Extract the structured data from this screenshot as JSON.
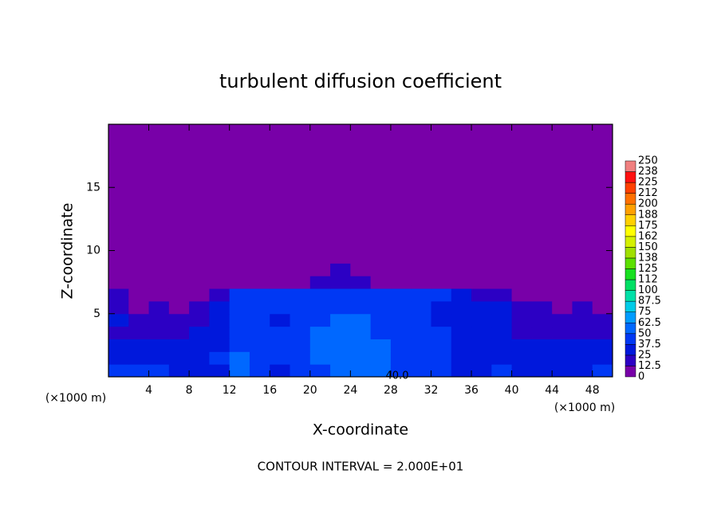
{
  "chart_data": {
    "type": "contour",
    "title": "turbulent diffusion coefficient",
    "xlabel": "X-coordinate",
    "ylabel": "Z-coordinate",
    "x_unit": "(×1000 m)",
    "y_unit": "(×1000 m)",
    "footer": "CONTOUR INTERVAL = 2.000E+01",
    "xlim": [
      0,
      50
    ],
    "ylim": [
      0,
      20
    ],
    "xticks": [
      4,
      8,
      12,
      16,
      20,
      24,
      28,
      32,
      36,
      40,
      44,
      48
    ],
    "yticks": [
      5,
      10,
      15
    ],
    "levels": [
      0,
      12.5,
      25,
      37.5,
      50,
      62.5,
      75,
      87.5,
      100,
      112,
      125,
      138,
      150,
      162,
      175,
      188,
      200,
      212,
      225,
      238,
      250
    ],
    "colors": [
      "#7800a8",
      "#2c00c4",
      "#0018dc",
      "#0038f4",
      "#0068ff",
      "#009cff",
      "#00cce8",
      "#00e0a8",
      "#00e064",
      "#18e020",
      "#5ce000",
      "#a0e000",
      "#d4f000",
      "#ffff00",
      "#ffd000",
      "#ffa000",
      "#ff7000",
      "#ff4000",
      "#ff1010",
      "#f08080"
    ],
    "contour_labels": [
      {
        "value": 40,
        "label": "40.0"
      }
    ],
    "x": [
      1,
      3,
      5,
      7,
      9,
      11,
      13,
      15,
      17,
      19,
      21,
      23,
      25,
      27,
      29,
      31,
      33,
      35,
      37,
      39,
      41,
      43,
      45,
      47,
      49
    ],
    "y": [
      0.5,
      1.5,
      2.5,
      3.5,
      4.5,
      5.5,
      6.5,
      7.5,
      8.5,
      9.5,
      10.5,
      11.5,
      12.5,
      13.5,
      14.5,
      15.5,
      16.5,
      17.5,
      18.5,
      19.5
    ],
    "z": [
      [
        40,
        45,
        40,
        35,
        30,
        35,
        55,
        40,
        35,
        40,
        45,
        50,
        55,
        50,
        45,
        40,
        40,
        35,
        35,
        40,
        35,
        30,
        30,
        35,
        40
      ],
      [
        35,
        30,
        30,
        30,
        35,
        45,
        60,
        45,
        40,
        45,
        50,
        55,
        60,
        55,
        45,
        40,
        40,
        35,
        35,
        35,
        30,
        30,
        30,
        30,
        30
      ],
      [
        30,
        25,
        25,
        25,
        30,
        35,
        45,
        40,
        40,
        45,
        50,
        60,
        60,
        50,
        40,
        40,
        40,
        35,
        30,
        30,
        25,
        25,
        25,
        25,
        25
      ],
      [
        20,
        20,
        15,
        15,
        30,
        35,
        40,
        40,
        40,
        45,
        50,
        60,
        55,
        45,
        40,
        40,
        40,
        35,
        30,
        25,
        20,
        20,
        20,
        15,
        20
      ],
      [
        25,
        15,
        20,
        15,
        20,
        35,
        40,
        40,
        35,
        40,
        45,
        55,
        50,
        45,
        40,
        40,
        35,
        35,
        35,
        25,
        15,
        20,
        15,
        20,
        15
      ],
      [
        20,
        10,
        15,
        10,
        15,
        35,
        40,
        40,
        40,
        40,
        40,
        45,
        45,
        40,
        40,
        40,
        35,
        35,
        30,
        25,
        20,
        15,
        10,
        15,
        10
      ],
      [
        15,
        8,
        8,
        8,
        8,
        20,
        40,
        40,
        40,
        40,
        40,
        40,
        40,
        40,
        40,
        40,
        40,
        30,
        20,
        15,
        10,
        8,
        8,
        8,
        8
      ],
      [
        5,
        5,
        5,
        5,
        5,
        5,
        8,
        10,
        10,
        10,
        15,
        20,
        15,
        10,
        8,
        5,
        5,
        5,
        5,
        5,
        5,
        5,
        5,
        5,
        5
      ],
      [
        5,
        5,
        5,
        5,
        5,
        5,
        5,
        5,
        5,
        5,
        10,
        15,
        10,
        5,
        5,
        5,
        5,
        5,
        5,
        5,
        5,
        5,
        5,
        5,
        5
      ],
      [
        5,
        5,
        5,
        5,
        5,
        5,
        5,
        5,
        5,
        5,
        5,
        5,
        5,
        5,
        5,
        5,
        5,
        5,
        5,
        5,
        5,
        5,
        5,
        5,
        5
      ],
      [
        5,
        5,
        5,
        5,
        5,
        5,
        5,
        5,
        5,
        5,
        5,
        5,
        5,
        5,
        5,
        5,
        5,
        5,
        5,
        5,
        5,
        5,
        5,
        5,
        5
      ],
      [
        5,
        5,
        5,
        5,
        5,
        5,
        5,
        5,
        5,
        5,
        5,
        5,
        5,
        5,
        5,
        5,
        5,
        5,
        5,
        5,
        5,
        5,
        5,
        5,
        5
      ],
      [
        5,
        5,
        5,
        5,
        5,
        5,
        5,
        5,
        5,
        5,
        5,
        5,
        5,
        5,
        5,
        5,
        5,
        5,
        5,
        5,
        5,
        5,
        5,
        5,
        5
      ],
      [
        5,
        5,
        5,
        5,
        5,
        5,
        5,
        5,
        5,
        5,
        5,
        5,
        5,
        5,
        5,
        5,
        5,
        5,
        5,
        5,
        5,
        5,
        5,
        5,
        5
      ],
      [
        5,
        5,
        5,
        5,
        5,
        5,
        5,
        5,
        5,
        5,
        5,
        5,
        5,
        5,
        5,
        5,
        5,
        5,
        5,
        5,
        5,
        5,
        5,
        5,
        5
      ],
      [
        5,
        5,
        5,
        5,
        5,
        5,
        5,
        5,
        5,
        5,
        5,
        5,
        5,
        5,
        5,
        5,
        5,
        5,
        5,
        5,
        5,
        5,
        5,
        5,
        5
      ],
      [
        5,
        5,
        5,
        5,
        5,
        5,
        5,
        5,
        5,
        5,
        5,
        5,
        5,
        5,
        5,
        5,
        5,
        5,
        5,
        5,
        5,
        5,
        5,
        5,
        5
      ],
      [
        5,
        5,
        5,
        5,
        5,
        5,
        5,
        5,
        5,
        5,
        5,
        5,
        5,
        5,
        5,
        5,
        5,
        5,
        5,
        5,
        5,
        5,
        5,
        5,
        5
      ],
      [
        5,
        5,
        5,
        5,
        5,
        5,
        5,
        5,
        5,
        5,
        5,
        5,
        5,
        5,
        5,
        5,
        5,
        5,
        5,
        5,
        5,
        5,
        5,
        5,
        5
      ],
      [
        5,
        5,
        5,
        5,
        5,
        5,
        5,
        5,
        5,
        5,
        5,
        5,
        5,
        5,
        5,
        5,
        5,
        5,
        5,
        5,
        5,
        5,
        5,
        5,
        5
      ]
    ]
  }
}
